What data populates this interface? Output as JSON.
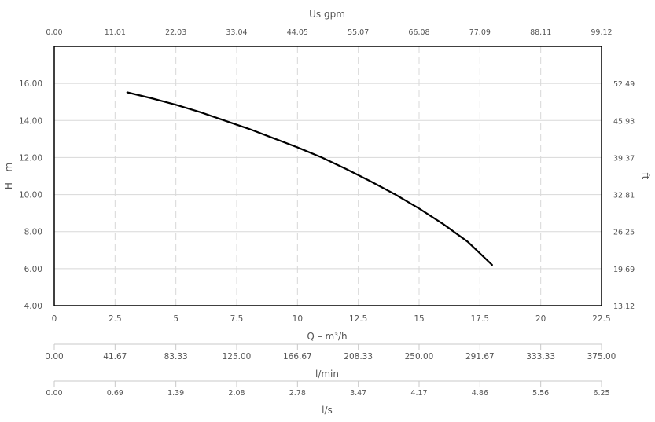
{
  "chart_data": {
    "type": "line",
    "series": [
      {
        "x": [
          3,
          4,
          5,
          6,
          7,
          8,
          9,
          10,
          11,
          12,
          13,
          14,
          15,
          16,
          17,
          18
        ],
        "y": [
          15.52,
          15.2,
          14.85,
          14.45,
          14.0,
          13.55,
          13.05,
          12.55,
          12.0,
          11.38,
          10.72,
          10.02,
          9.25,
          8.4,
          7.45,
          6.2
        ]
      }
    ],
    "grid": true,
    "axes": {
      "bottom": {
        "title": "Q – m³/h",
        "range": [
          0,
          22.5
        ],
        "tick_labels": [
          "0",
          "2.5",
          "5",
          "7.5",
          "10",
          "12.5",
          "15",
          "17.5",
          "20",
          "22.5"
        ]
      },
      "top": {
        "title": "Us gpm",
        "tick_labels": [
          "0.00",
          "11.01",
          "22.03",
          "33.04",
          "44.05",
          "55.07",
          "66.08",
          "77.09",
          "88.11",
          "99.12"
        ]
      },
      "left": {
        "title": "H – m",
        "range": [
          4,
          18
        ],
        "tick_labels": [
          "4.00",
          "6.00",
          "8.00",
          "10.00",
          "12.00",
          "14.00",
          "16.00"
        ]
      },
      "right": {
        "title": "ft",
        "tick_labels": [
          "13.12",
          "19.69",
          "26.25",
          "32.81",
          "39.37",
          "45.93",
          "52.49"
        ]
      },
      "lmin": {
        "title": "l/min",
        "tick_labels": [
          "0.00",
          "41.67",
          "83.33",
          "125.00",
          "166.67",
          "208.33",
          "250.00",
          "291.67",
          "333.33",
          "375.00"
        ]
      },
      "ls": {
        "title": "l/s",
        "tick_labels": [
          "0.00",
          "0.69",
          "1.39",
          "2.08",
          "2.78",
          "3.47",
          "4.17",
          "4.86",
          "5.56",
          "6.25"
        ]
      }
    }
  }
}
